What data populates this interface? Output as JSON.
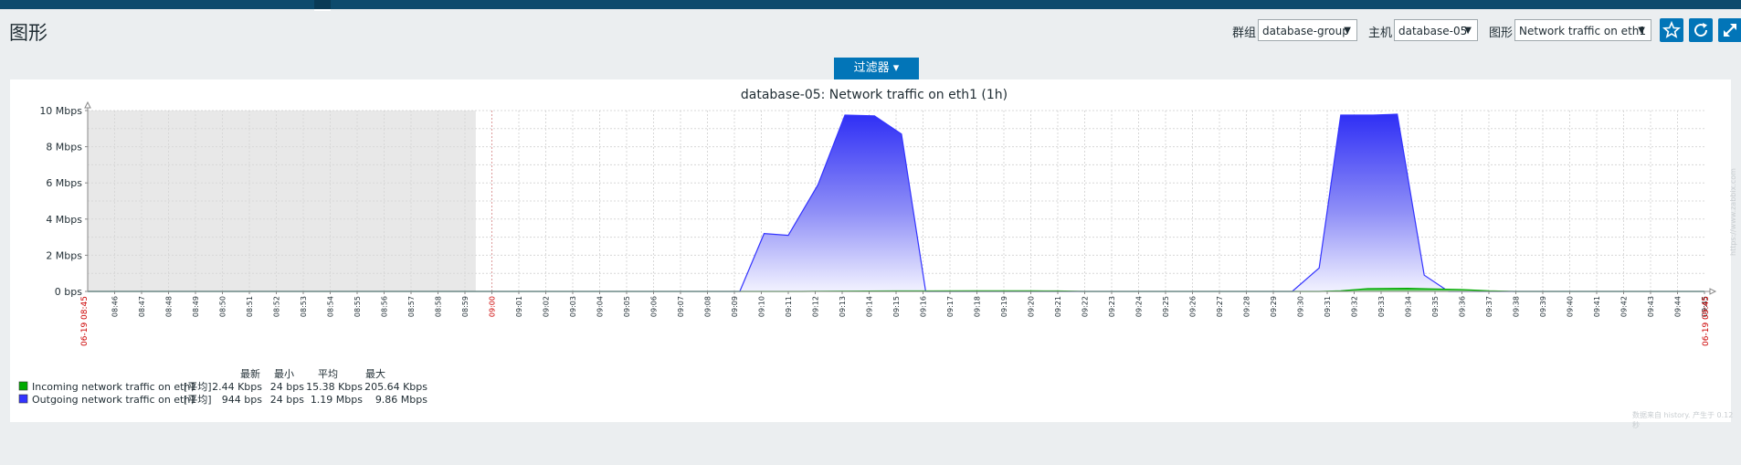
{
  "page": {
    "title": "图形",
    "filter_label": "过滤器 ▾"
  },
  "controls": {
    "group_label": "群组",
    "group_value": "database-group",
    "host_label": "主机",
    "host_value": "database-05",
    "graph_label": "图形",
    "graph_value": "Network traffic on eth1",
    "favourite_icon": "star-icon",
    "refresh_icon": "refresh-icon",
    "fullscreen_icon": "fullscreen-icon"
  },
  "colors": {
    "accent": "#0275b8",
    "incoming": "#00aa00",
    "outgoing": "#3333ff",
    "period_red": "#cc0000",
    "nodata_bg": "#e8e8e8"
  },
  "chart_data": {
    "type": "area",
    "title": "database-05: Network traffic on eth1 (1h)",
    "y_unit": "bps",
    "ylim": [
      0,
      10000000
    ],
    "y_ticks": [
      {
        "value": 0,
        "label": "0 bps"
      },
      {
        "value": 2000000,
        "label": "2 Mbps"
      },
      {
        "value": 4000000,
        "label": "4 Mbps"
      },
      {
        "value": 6000000,
        "label": "6 Mbps"
      },
      {
        "value": 8000000,
        "label": "8 Mbps"
      },
      {
        "value": 10000000,
        "label": "10 Mbps"
      }
    ],
    "x_start": "06-19 08:45",
    "x_end": "06-19 09:45",
    "x_hour_mark": "09:00",
    "x_ticks": [
      "08:46",
      "08:47",
      "08:48",
      "08:49",
      "08:50",
      "08:51",
      "08:52",
      "08:53",
      "08:54",
      "08:55",
      "08:56",
      "08:57",
      "08:58",
      "08:59",
      "09:00",
      "09:01",
      "09:02",
      "09:03",
      "09:04",
      "09:05",
      "09:06",
      "09:07",
      "09:08",
      "09:09",
      "09:10",
      "09:11",
      "09:12",
      "09:13",
      "09:14",
      "09:15",
      "09:16",
      "09:17",
      "09:18",
      "09:19",
      "09:20",
      "09:21",
      "09:22",
      "09:23",
      "09:24",
      "09:25",
      "09:26",
      "09:27",
      "09:28",
      "09:29",
      "09:30",
      "09:31",
      "09:32",
      "09:33",
      "09:34",
      "09:35",
      "09:36",
      "09:37",
      "09:38",
      "09:39",
      "09:40",
      "09:41",
      "09:42",
      "09:43",
      "09:44",
      "09:45"
    ],
    "nodata_range_minutes": [
      0,
      14.4
    ],
    "grid": true,
    "legend_position": "bottom-left",
    "series": [
      {
        "name": "Incoming network traffic on eth1",
        "color": "#00aa00",
        "points_minutes": [
          [
            0,
            0
          ],
          [
            26.5,
            0
          ],
          [
            27.8,
            15000
          ],
          [
            30,
            25000
          ],
          [
            33,
            30000
          ],
          [
            35,
            30000
          ],
          [
            36,
            25000
          ],
          [
            37,
            0
          ],
          [
            45.7,
            0
          ],
          [
            46.5,
            30000
          ],
          [
            47.5,
            150000
          ],
          [
            49,
            170000
          ],
          [
            50,
            130000
          ],
          [
            51,
            100000
          ],
          [
            52,
            30000
          ],
          [
            53,
            0
          ],
          [
            60,
            0
          ]
        ]
      },
      {
        "name": "Outgoing network traffic on eth1",
        "color": "#3333ff",
        "points_minutes": [
          [
            0,
            0
          ],
          [
            24.2,
            0
          ],
          [
            25.1,
            3200000
          ],
          [
            26,
            3100000
          ],
          [
            27.1,
            5900000
          ],
          [
            28.1,
            9750000
          ],
          [
            29.2,
            9700000
          ],
          [
            30.2,
            8700000
          ],
          [
            31.1,
            0
          ],
          [
            44.7,
            0
          ],
          [
            45.7,
            1300000
          ],
          [
            46.5,
            9750000
          ],
          [
            47.7,
            9750000
          ],
          [
            48.6,
            9800000
          ],
          [
            49.6,
            900000
          ],
          [
            50.5,
            0
          ],
          [
            60,
            0
          ]
        ]
      }
    ],
    "legend": {
      "headers": [
        "最新",
        "最小",
        "平均",
        "最大"
      ],
      "rows": [
        {
          "name": "Incoming network traffic on eth1",
          "func": "[平均]",
          "last": "2.44 Kbps",
          "min": "24 bps",
          "avg": "15.38 Kbps",
          "max": "205.64 Kbps",
          "color": "#00aa00"
        },
        {
          "name": "Outgoing network traffic on eth1",
          "func": "[平均]",
          "last": "944 bps",
          "min": "24 bps",
          "avg": "1.19 Mbps",
          "max": "9.86 Mbps",
          "color": "#3333ff"
        }
      ]
    },
    "footnote": "数据来自 history. 产生于 0.12 秒",
    "side_url": "https://www.zabbix.com"
  }
}
